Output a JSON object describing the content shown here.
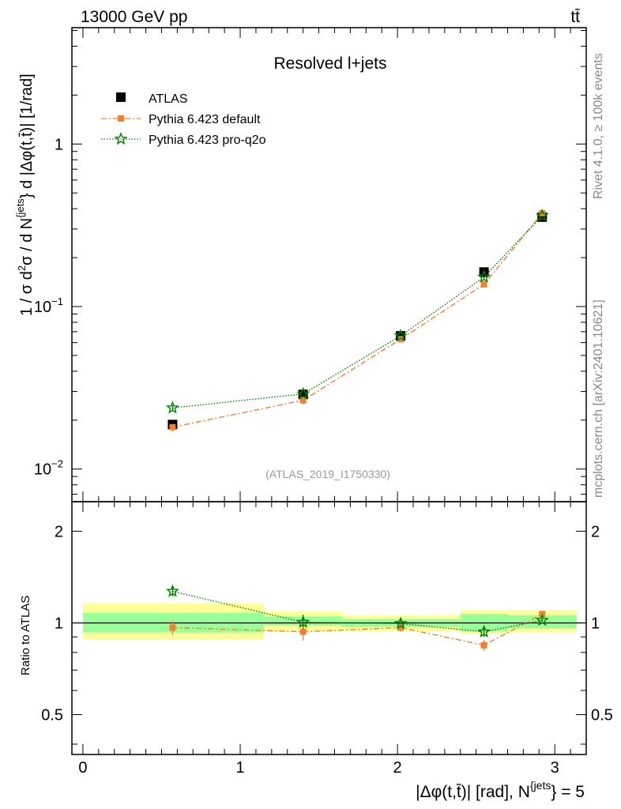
{
  "header": {
    "left": "13000 GeV pp",
    "right": "tt̄"
  },
  "side": {
    "top": "Rivet 4.1.0, ≥ 100k events",
    "bottom": "mcplots.cern.ch [arXiv:2401.10621]"
  },
  "chart_data": {
    "type": "scatter",
    "title": "Resolved l+jets",
    "watermark": "(ATLAS_2019_I1750330)",
    "xlabel": "|Δφ(t,t̄)| [rad], N^{jets} = 5",
    "xlabel_main": "|Δφ(t,t̄)| [rad], N",
    "xlabel_sup": "{jets",
    "xlabel_tail": "} = 5",
    "ylabel": "1 / σ d²σ / d N^{jets} d |Δφ(t,t̄)| [1/rad]",
    "xlim": [
      -0.07,
      3.2
    ],
    "ylim": [
      0.0063,
      5.2
    ],
    "yscale": "log",
    "x_ticks": [
      "0",
      "1",
      "2",
      "3"
    ],
    "y_ticks": [
      "10⁻²",
      "10⁻¹",
      "1"
    ],
    "bins": [
      [
        0.0,
        1.15
      ],
      [
        1.15,
        1.65
      ],
      [
        1.65,
        2.4
      ],
      [
        2.4,
        2.7
      ],
      [
        2.7,
        3.14
      ]
    ],
    "x": [
      0.57,
      1.4,
      2.02,
      2.55,
      2.92
    ],
    "series": [
      {
        "name": "ATLAS",
        "marker": "square",
        "color": "#000000",
        "values": [
          0.0188,
          0.0288,
          0.066,
          0.163,
          0.355
        ]
      },
      {
        "name": "Pythia 6.423 default",
        "marker": "square-small",
        "line": "dashdot",
        "color": "#f47f30",
        "values": [
          0.0181,
          0.0265,
          0.063,
          0.137,
          0.375
        ],
        "errors": [
          0.001,
          0.0015,
          0.002,
          0.005,
          0.01
        ]
      },
      {
        "name": "Pythia 6.423 pro-q2o",
        "marker": "star",
        "line": "dotted",
        "color": "#008000",
        "values": [
          0.0238,
          0.029,
          0.066,
          0.152,
          0.362
        ],
        "errors": [
          0.001,
          0.0015,
          0.002,
          0.005,
          0.01
        ]
      }
    ],
    "ratio": {
      "ylabel": "Ratio to ATLAS",
      "ylim": [
        0.37,
        2.5
      ],
      "y_ticks": [
        "0.5",
        "1",
        "2"
      ],
      "y_tick_values": [
        0.5,
        1,
        2
      ],
      "band_inner": [
        [
          0.93,
          1.08
        ],
        [
          0.98,
          1.05
        ],
        [
          0.97,
          1.03
        ],
        [
          0.94,
          1.07
        ],
        [
          0.96,
          1.06
        ]
      ],
      "band_outer": [
        [
          0.88,
          1.16
        ],
        [
          0.94,
          1.09
        ],
        [
          0.94,
          1.06
        ],
        [
          0.92,
          1.1
        ],
        [
          0.93,
          1.1
        ]
      ],
      "series": [
        {
          "name": "Pythia 6.423 default",
          "values": [
            0.965,
            0.935,
            0.965,
            0.845,
            1.07
          ],
          "errors": [
            0.05,
            0.06,
            0.03,
            0.035,
            0.02
          ]
        },
        {
          "name": "Pythia 6.423 pro-q2o",
          "values": [
            1.27,
            1.005,
            0.995,
            0.935,
            1.02
          ],
          "errors": [
            0.05,
            0.06,
            0.03,
            0.035,
            0.02
          ]
        }
      ]
    }
  }
}
